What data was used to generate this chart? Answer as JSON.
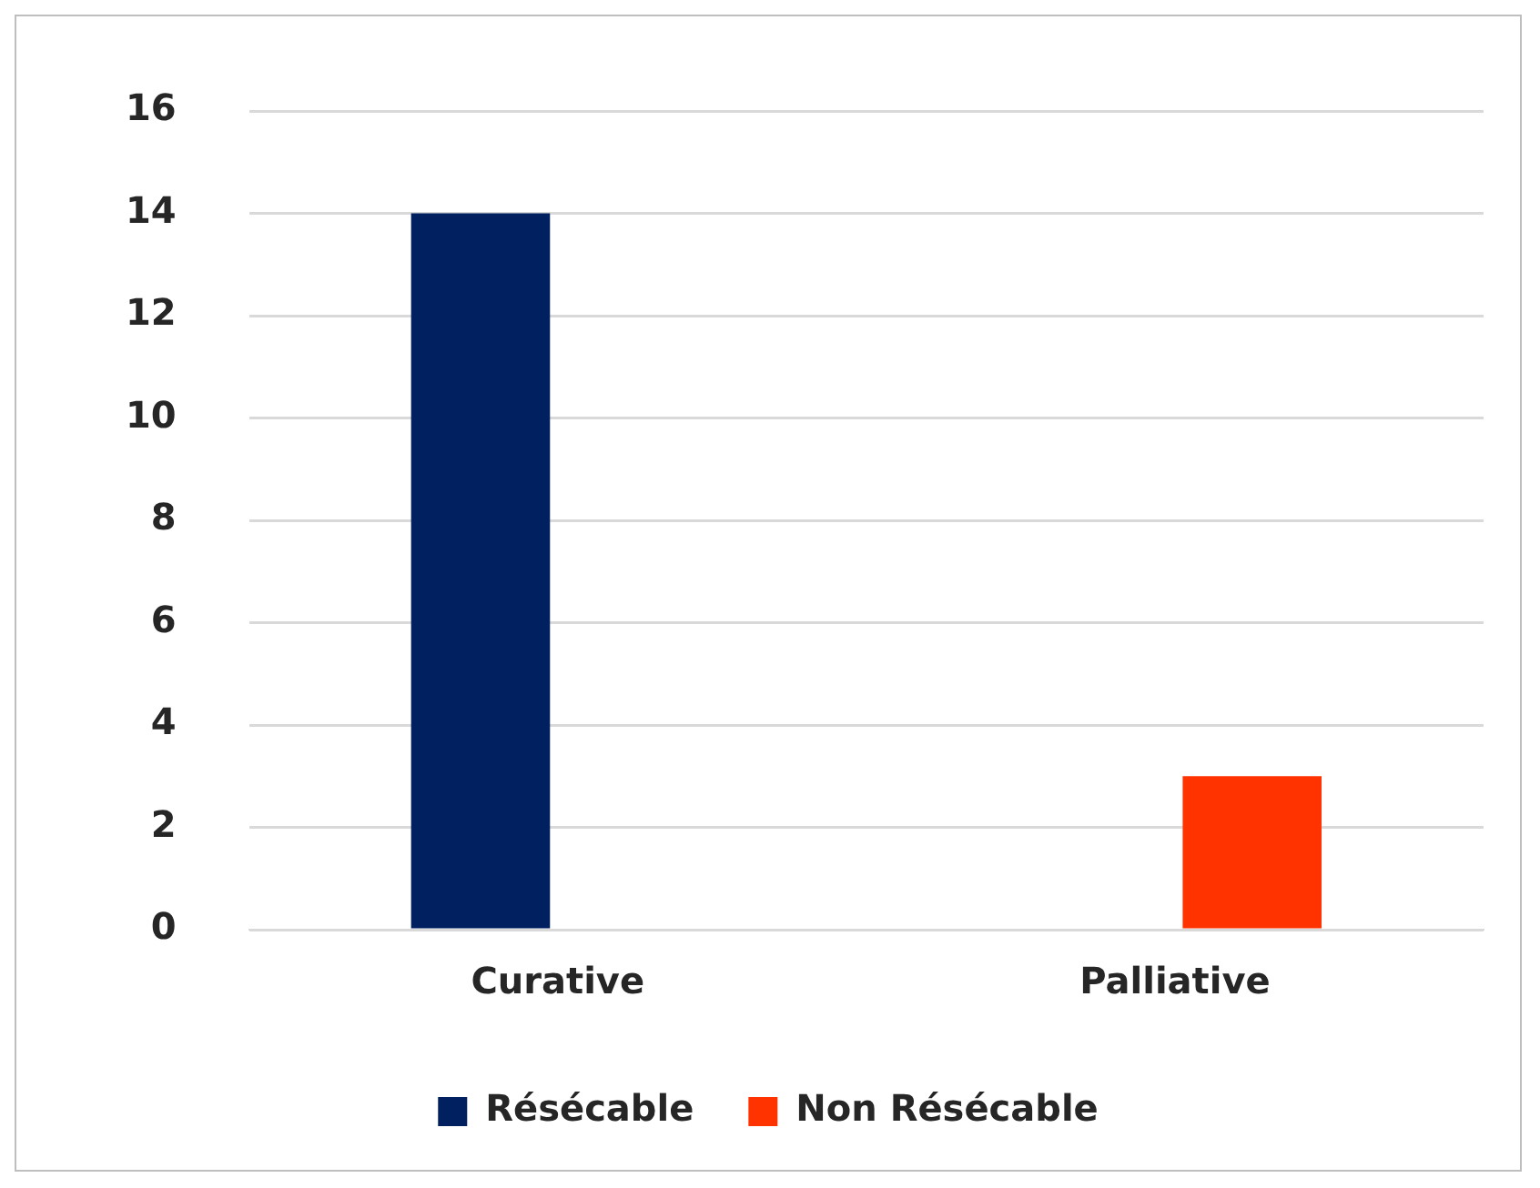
{
  "chart_data": {
    "type": "bar",
    "categories": [
      "Curative",
      "Palliative"
    ],
    "series": [
      {
        "name": "Résécable",
        "color": "#002060",
        "values": [
          14,
          null
        ]
      },
      {
        "name": "Non Résécable",
        "color": "#ff3300",
        "values": [
          null,
          3
        ]
      }
    ],
    "ylim": [
      0,
      16
    ],
    "yticks": [
      0,
      2,
      4,
      6,
      8,
      10,
      12,
      14,
      16
    ],
    "grid": "y",
    "legend": "bottom"
  }
}
